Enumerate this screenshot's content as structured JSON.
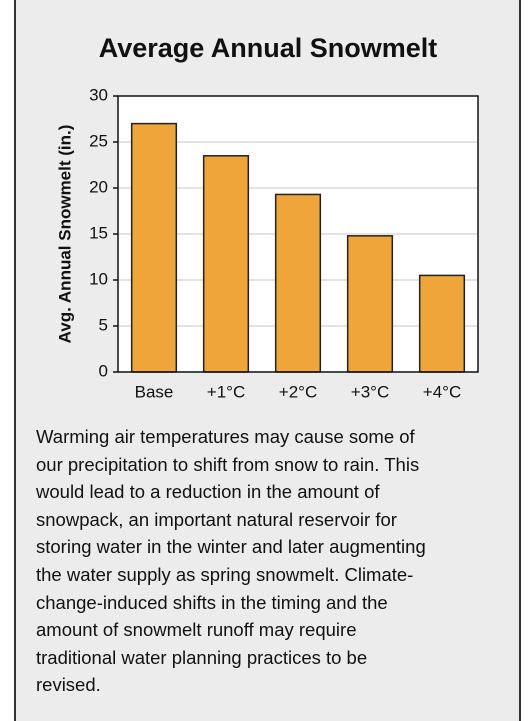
{
  "chart_data": {
    "type": "bar",
    "title": "Average Annual Snowmelt",
    "y_label": "Avg. Annual Snowmelt (in.)",
    "categories": [
      "Base",
      "+1°C",
      "+2°C",
      "+3°C",
      "+4°C"
    ],
    "values": [
      27,
      23.5,
      19.3,
      14.8,
      10.5
    ],
    "color": "#f0a53a",
    "ylim": [
      0,
      30
    ],
    "yticks": [
      0,
      5,
      10,
      15,
      20,
      25,
      30
    ],
    "grid": true
  },
  "caption": [
    "Warming air temperatures may cause some of",
    "our precipitation to shift from snow to rain. This",
    "would lead to a reduction in the amount of",
    "snowpack, an important natural reservoir for",
    "storing water in the winter and later augmenting",
    "the water supply as spring snowmelt. Climate-",
    "change-induced shifts in the timing and the",
    "amount of snowmelt runoff may require",
    "traditional water planning practices to be",
    "revised."
  ]
}
